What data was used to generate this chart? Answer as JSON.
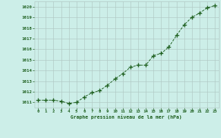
{
  "x": [
    0,
    1,
    2,
    3,
    4,
    5,
    6,
    7,
    8,
    9,
    10,
    11,
    12,
    13,
    14,
    15,
    16,
    17,
    18,
    19,
    20,
    21,
    22,
    23
  ],
  "y": [
    1011.2,
    1011.2,
    1011.2,
    1011.1,
    1010.9,
    1011.0,
    1011.5,
    1011.9,
    1012.1,
    1012.6,
    1013.2,
    1013.7,
    1014.3,
    1014.5,
    1014.5,
    1015.4,
    1015.6,
    1016.2,
    1017.3,
    1018.3,
    1019.0,
    1019.4,
    1019.9,
    1020.1
  ],
  "background_color": "#cceee8",
  "grid_color": "#b0c8c4",
  "line_color": "#1a5c1a",
  "marker_color": "#1a5c1a",
  "xlabel": "Graphe pression niveau de la mer (hPa)",
  "xlabel_color": "#1a5c1a",
  "tick_color": "#1a5c1a",
  "ytick_labels": [
    1011,
    1012,
    1013,
    1014,
    1015,
    1016,
    1017,
    1018,
    1019,
    1020
  ],
  "ylim": [
    1010.5,
    1020.5
  ],
  "xlim": [
    -0.5,
    23.5
  ],
  "xtick_labels": [
    "0",
    "1",
    "2",
    "3",
    "4",
    "5",
    "6",
    "7",
    "8",
    "9",
    "10",
    "11",
    "12",
    "13",
    "14",
    "15",
    "16",
    "17",
    "18",
    "19",
    "20",
    "21",
    "22",
    "23"
  ]
}
